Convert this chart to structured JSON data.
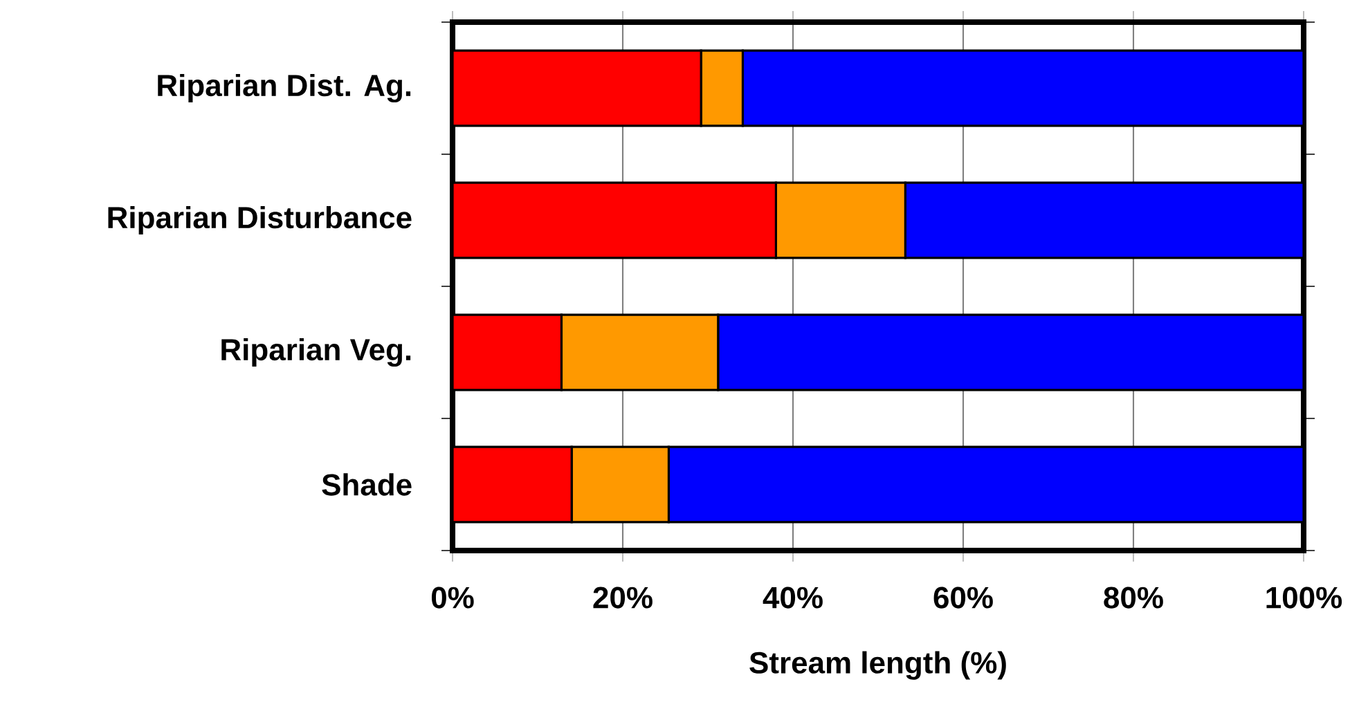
{
  "chart_data": {
    "type": "bar",
    "orientation": "horizontal",
    "stacked": true,
    "xlabel": "Stream length (%)",
    "categories": [
      "Riparian Dist. Ag.",
      "Riparian Disturbance",
      "Riparian Veg.",
      "Shade"
    ],
    "series": [
      {
        "color": "#ff0000",
        "values": [
          29.2,
          38.0,
          12.8,
          14.0
        ]
      },
      {
        "color": "#ff9900",
        "values": [
          4.9,
          15.2,
          18.4,
          11.4
        ]
      },
      {
        "color": "#0000ff",
        "values": [
          65.9,
          46.8,
          68.8,
          74.6
        ]
      }
    ],
    "xlim": [
      0,
      100
    ],
    "xticks": [
      {
        "value": 0,
        "label": "0%"
      },
      {
        "value": 20,
        "label": "20%"
      },
      {
        "value": 40,
        "label": "40%"
      },
      {
        "value": 60,
        "label": "60%"
      },
      {
        "value": 80,
        "label": "80%"
      },
      {
        "value": 100,
        "label": "100%"
      }
    ],
    "grid": "x"
  }
}
